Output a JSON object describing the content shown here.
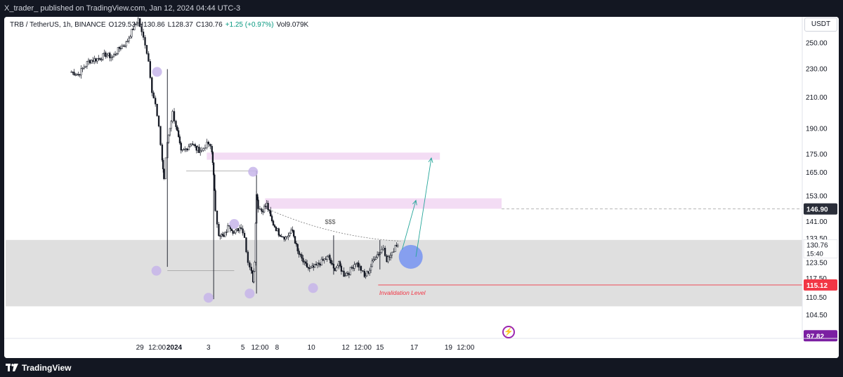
{
  "page": {
    "publisher_line": "X_trader_ published on TradingView.com, Jan 12, 2024 04:44 UTC-3",
    "brand": "TradingView"
  },
  "header": {
    "symbol": "TRB / TetherUS, 1h, BINANCE",
    "open": "O129.53",
    "high": "H130.86",
    "low": "L128.37",
    "close": "C130.76",
    "change": "+1.25 (+0.97%)",
    "volume": "Vol9.079K",
    "currency": "USDT"
  },
  "colors": {
    "background": "#ffffff",
    "outer": "#131722",
    "candle": "#131722",
    "zone_pink": "#f3dcf4",
    "zone_gray": "#dcdcdc",
    "dot": "#c7b5ea",
    "arrow": "#26a69a",
    "big_circle": "#6f8ef2",
    "invalidation": "#f23645",
    "price_label_dark": "#2a2e39",
    "price_label_red": "#f23645",
    "price_label_purple": "#7b1fa2"
  },
  "annotations": {
    "liquidity": "$$$",
    "invalidation": "Invalidation Level",
    "flash_icon": "lightning-icon"
  },
  "chart_data": {
    "type": "candlestick",
    "title": "",
    "ylim": [
      97,
      272
    ],
    "y_ticks": [
      "250.00",
      "230.00",
      "210.00",
      "190.00",
      "175.00",
      "165.00",
      "153.00",
      "141.00",
      "133.50",
      "123.50",
      "117.50",
      "110.50",
      "104.50"
    ],
    "y_tick_values": [
      250,
      230,
      210,
      190,
      175,
      165,
      153,
      141,
      133.5,
      123.5,
      117.5,
      110.5,
      104.5
    ],
    "x_ticks": [
      {
        "label": "29",
        "bold": false
      },
      {
        "label": "12:00",
        "bold": false
      },
      {
        "label": "2024",
        "bold": true
      },
      {
        "label": "3",
        "bold": false
      },
      {
        "label": "5",
        "bold": false
      },
      {
        "label": "12:00",
        "bold": false
      },
      {
        "label": "8",
        "bold": false
      },
      {
        "label": "10",
        "bold": false
      },
      {
        "label": "12",
        "bold": false
      },
      {
        "label": "12:00",
        "bold": false
      },
      {
        "label": "15",
        "bold": false
      },
      {
        "label": "17",
        "bold": false
      },
      {
        "label": "19",
        "bold": false
      },
      {
        "label": "12:00",
        "bold": false
      }
    ],
    "x_tick_days": [
      -3.5,
      -3.0,
      -2.5,
      -1.5,
      -0.5,
      0.0,
      0.5,
      1.5,
      2.5,
      3.0,
      3.5,
      4.5,
      5.5,
      6.0
    ],
    "price_path": [
      [
        -5.5,
        228
      ],
      [
        -5.3,
        226
      ],
      [
        -5.0,
        236
      ],
      [
        -4.7,
        238
      ],
      [
        -4.5,
        241
      ],
      [
        -4.3,
        239
      ],
      [
        -4.1,
        246
      ],
      [
        -3.9,
        250
      ],
      [
        -3.7,
        262
      ],
      [
        -3.55,
        270
      ],
      [
        -3.45,
        258
      ],
      [
        -3.35,
        250
      ],
      [
        -3.25,
        236
      ],
      [
        -3.15,
        215
      ],
      [
        -3.05,
        205
      ],
      [
        -2.95,
        190
      ],
      [
        -2.85,
        172
      ],
      [
        -2.8,
        162
      ],
      [
        -2.7,
        182
      ],
      [
        -2.55,
        200
      ],
      [
        -2.45,
        192
      ],
      [
        -2.3,
        176
      ],
      [
        -2.15,
        178
      ],
      [
        -2.0,
        182
      ],
      [
        -1.85,
        178
      ],
      [
        -1.7,
        177
      ],
      [
        -1.6,
        180
      ],
      [
        -1.5,
        181
      ],
      [
        -1.4,
        176
      ],
      [
        -1.35,
        165
      ],
      [
        -1.3,
        145
      ],
      [
        -1.2,
        136
      ],
      [
        -1.05,
        134
      ],
      [
        -0.9,
        140
      ],
      [
        -0.75,
        136
      ],
      [
        -0.55,
        139
      ],
      [
        -0.45,
        134
      ],
      [
        -0.35,
        124
      ],
      [
        -0.25,
        121
      ],
      [
        -0.2,
        117
      ],
      [
        -0.15,
        125
      ],
      [
        -0.1,
        155
      ],
      [
        -0.05,
        148
      ],
      [
        0.05,
        146
      ],
      [
        0.2,
        149
      ],
      [
        0.35,
        141
      ],
      [
        0.55,
        136
      ],
      [
        0.75,
        134
      ],
      [
        0.95,
        137
      ],
      [
        1.1,
        128
      ],
      [
        1.3,
        123
      ],
      [
        1.45,
        121
      ],
      [
        1.6,
        122
      ],
      [
        1.8,
        124
      ],
      [
        2.0,
        126
      ],
      [
        2.15,
        121
      ],
      [
        2.3,
        123
      ],
      [
        2.45,
        119
      ],
      [
        2.6,
        120
      ],
      [
        2.8,
        124
      ],
      [
        2.95,
        121
      ],
      [
        3.05,
        118
      ],
      [
        3.2,
        121
      ],
      [
        3.35,
        126
      ],
      [
        3.5,
        128
      ],
      [
        3.6,
        130
      ],
      [
        3.7,
        125
      ],
      [
        3.85,
        127
      ],
      [
        3.95,
        131
      ],
      [
        4.02,
        130.76
      ]
    ],
    "wicks": [
      {
        "x": -2.7,
        "high": 230,
        "low": 122
      },
      {
        "x": -1.35,
        "high": 168,
        "low": 110
      },
      {
        "x": -0.1,
        "high": 166,
        "low": 112
      },
      {
        "x": 2.15,
        "high": 135,
        "low": 119
      },
      {
        "x": 3.5,
        "high": 133,
        "low": 121
      }
    ],
    "last_price": "130.76",
    "countdown": "15:40",
    "key_levels": [
      {
        "price": 146.9,
        "label": "146.90"
      },
      {
        "price": 115.12,
        "label": "115.12"
      },
      {
        "price": 97.82,
        "label": "97.82"
      }
    ]
  }
}
